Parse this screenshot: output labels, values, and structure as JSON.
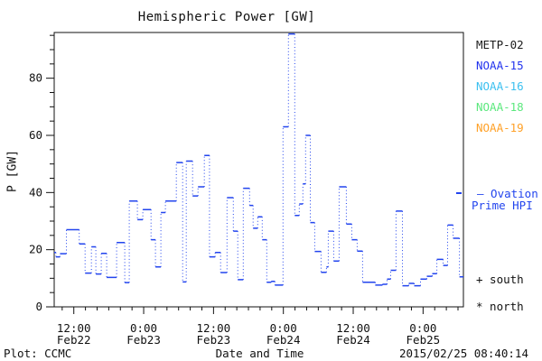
{
  "chart_data": {
    "type": "line",
    "subtype": "step-dotted",
    "title": "Hemispheric Power [GW]",
    "xlabel": "Date and Time",
    "ylabel": "P [GW]",
    "ylim": [
      0,
      96
    ],
    "y_ticks": [
      0,
      20,
      40,
      60,
      80
    ],
    "y_minor_step": 5,
    "grid": false,
    "legend_position": "right",
    "x_unit": "hours since left edge of plot",
    "x_hours_span": 70.3,
    "x_minor_first": 1.37,
    "x_minor_step_h": 2,
    "x_ticks": [
      {
        "h": 3.37,
        "time": "12:00",
        "date": "Feb22"
      },
      {
        "h": 15.37,
        "time": "0:00",
        "date": "Feb23"
      },
      {
        "h": 27.37,
        "time": "12:00",
        "date": "Feb23"
      },
      {
        "h": 39.37,
        "time": "0:00",
        "date": "Feb24"
      },
      {
        "h": 51.37,
        "time": "12:00",
        "date": "Feb24"
      },
      {
        "h": 63.37,
        "time": "0:00",
        "date": "Feb25"
      }
    ],
    "series": [
      {
        "name": "Ovation Prime HPI",
        "color": "#2244ee",
        "style": "steps with dotted vertical connectors",
        "points": [
          [
            0,
            19
          ],
          [
            0.3,
            17.5
          ],
          [
            1.0,
            18.6
          ],
          [
            2.1,
            27
          ],
          [
            4.3,
            22
          ],
          [
            5.3,
            11.8
          ],
          [
            6.4,
            21
          ],
          [
            7.15,
            11.5
          ],
          [
            8.08,
            18.7
          ],
          [
            9.01,
            10.3
          ],
          [
            10.72,
            22.5
          ],
          [
            12.12,
            8.5
          ],
          [
            12.9,
            37
          ],
          [
            14.29,
            30.5
          ],
          [
            15.23,
            34
          ],
          [
            16.63,
            23.5
          ],
          [
            17.4,
            14
          ],
          [
            18.33,
            33
          ],
          [
            19.11,
            37
          ],
          [
            20.98,
            50.5
          ],
          [
            22.06,
            8.7
          ],
          [
            22.69,
            51
          ],
          [
            23.77,
            38.8
          ],
          [
            24.71,
            42
          ],
          [
            25.79,
            53
          ],
          [
            26.68,
            17.5
          ],
          [
            27.66,
            19
          ],
          [
            28.59,
            12
          ],
          [
            29.68,
            38.2
          ],
          [
            30.77,
            26.5
          ],
          [
            31.54,
            9.5
          ],
          [
            32.48,
            41.5
          ],
          [
            33.56,
            35.5
          ],
          [
            34.18,
            27.5
          ],
          [
            34.96,
            31.5
          ],
          [
            35.74,
            23.5
          ],
          [
            36.51,
            8.6
          ],
          [
            37.29,
            8.9
          ],
          [
            37.91,
            7.6
          ],
          [
            39.31,
            63
          ],
          [
            40.24,
            95.5
          ],
          [
            41.33,
            32
          ],
          [
            42.1,
            36
          ],
          [
            42.73,
            43
          ],
          [
            43.19,
            60
          ],
          [
            44.0,
            29.5
          ],
          [
            44.75,
            19.4
          ],
          [
            45.84,
            12.1
          ],
          [
            46.77,
            14
          ],
          [
            47.08,
            26.5
          ],
          [
            48.01,
            16
          ],
          [
            48.94,
            42
          ],
          [
            50.19,
            29
          ],
          [
            51.12,
            23.5
          ],
          [
            52.05,
            19.5
          ],
          [
            52.98,
            8.6
          ],
          [
            55.16,
            7.6
          ],
          [
            56.4,
            7.9
          ],
          [
            57.18,
            9.7
          ],
          [
            57.8,
            12.8
          ],
          [
            58.73,
            33.5
          ],
          [
            59.82,
            7.4
          ],
          [
            60.91,
            8.2
          ],
          [
            61.84,
            7.4
          ],
          [
            62.93,
            9.7
          ],
          [
            64.02,
            10.7
          ],
          [
            64.95,
            11.6
          ],
          [
            65.73,
            16.6
          ],
          [
            66.82,
            14.5
          ],
          [
            67.59,
            28.6
          ],
          [
            68.53,
            24
          ],
          [
            69.61,
            10.5
          ]
        ]
      }
    ]
  },
  "legend": {
    "satellites": [
      {
        "label": "METP-02",
        "color": "#1a1a1a"
      },
      {
        "label": "NOAA-15",
        "color": "#2233ee"
      },
      {
        "label": "NOAA-16",
        "color": "#3cc0f0"
      },
      {
        "label": "NOAA-18",
        "color": "#5ce87e"
      },
      {
        "label": "NOAA-19",
        "color": "#ffa128"
      }
    ],
    "ovation_label_line1": "— Ovation",
    "ovation_label_line2": "Prime HPI",
    "south_marker": "+ south",
    "north_marker": "* north"
  },
  "footer": {
    "left": "Plot: CCMC",
    "right": "2015/02/25 08:40:14"
  }
}
